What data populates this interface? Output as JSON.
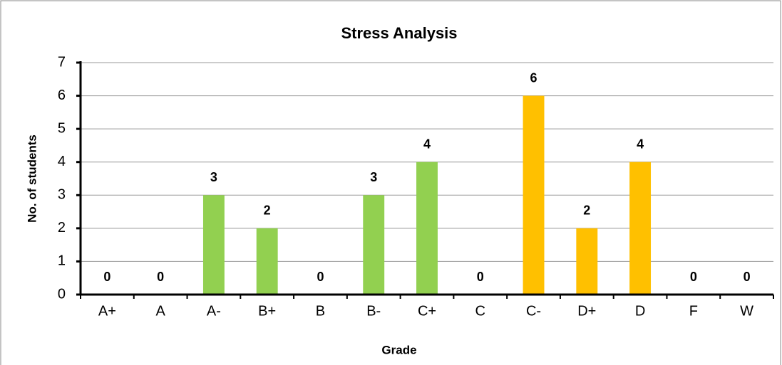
{
  "chart_data": {
    "type": "bar",
    "title": "Stress Analysis",
    "x_label": "Grade",
    "y_label": "No. of students",
    "categories": [
      "A+",
      "A",
      "A-",
      "B+",
      "B",
      "B-",
      "C+",
      "C",
      "C-",
      "D+",
      "D",
      "F",
      "W"
    ],
    "values": [
      0,
      0,
      3,
      2,
      0,
      3,
      4,
      0,
      6,
      2,
      4,
      0,
      0
    ],
    "colors": [
      "#92d050",
      "#92d050",
      "#92d050",
      "#92d050",
      "#92d050",
      "#92d050",
      "#92d050",
      "#ffc000",
      "#ffc000",
      "#ffc000",
      "#ffc000",
      "#ffc000",
      "#ffc000"
    ],
    "ylim": [
      0,
      7
    ],
    "yticks": [
      0,
      1,
      2,
      3,
      4,
      5,
      6,
      7
    ],
    "grid": true
  }
}
